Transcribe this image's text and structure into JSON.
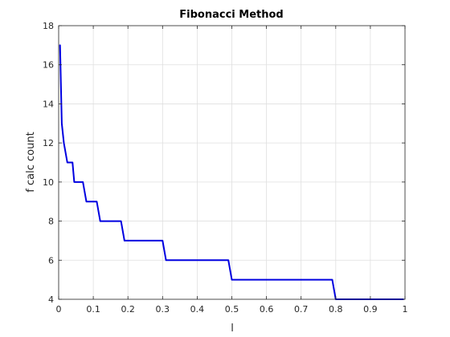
{
  "chart_data": {
    "type": "line",
    "title": "Fibonacci Method",
    "xlabel": "l",
    "ylabel": "f calc count",
    "xlim": [
      0,
      1
    ],
    "ylim": [
      4,
      18
    ],
    "xticks": [
      "0",
      "0.1",
      "0.2",
      "0.3",
      "0.4",
      "0.5",
      "0.6",
      "0.7",
      "0.8",
      "0.9",
      "1"
    ],
    "yticks": [
      "4",
      "6",
      "8",
      "10",
      "12",
      "14",
      "16",
      "18"
    ],
    "grid": true,
    "series": [
      {
        "color": "#0000e0",
        "x": [
          0.004,
          0.009,
          0.015,
          0.025,
          0.03,
          0.04,
          0.045,
          0.05,
          0.055,
          0.07,
          0.08,
          0.11,
          0.12,
          0.18,
          0.19,
          0.3,
          0.31,
          0.49,
          0.5,
          0.79,
          0.8,
          0.995
        ],
        "y": [
          17,
          13,
          12,
          11,
          11,
          11,
          10,
          10,
          10,
          10,
          9,
          9,
          8,
          8,
          7,
          7,
          6,
          6,
          5,
          5,
          4,
          4
        ]
      }
    ]
  }
}
